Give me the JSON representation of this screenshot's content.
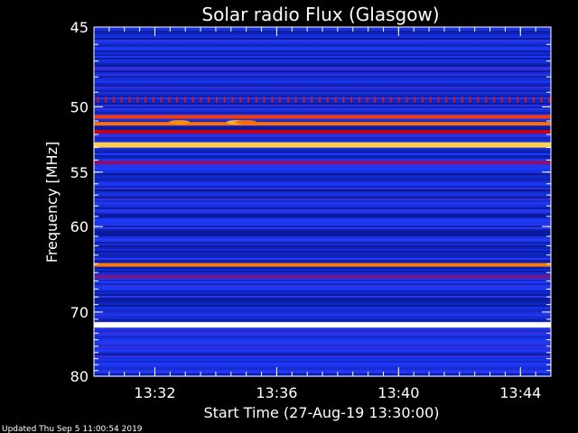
{
  "chart_data": {
    "type": "heatmap",
    "title": "Solar radio Flux (Glasgow)",
    "xlabel": "Start Time (27-Aug-19 13:30:00)",
    "ylabel": "Frequency [MHz]",
    "x_ticks": [
      "13:32",
      "13:36",
      "13:40",
      "13:44"
    ],
    "x_tick_minutes": [
      2,
      6,
      10,
      14
    ],
    "xlim_minutes": [
      0,
      15
    ],
    "y_ticks": [
      45,
      50,
      55,
      60,
      70,
      80
    ],
    "ylim": [
      45,
      80
    ],
    "y_scale": "reciprocal",
    "colormap": [
      "#000033",
      "#0a1aa0",
      "#1e3cff",
      "#6a1aa0",
      "#c80014",
      "#ff3c00",
      "#ff8c00",
      "#ffe066",
      "#ffffff"
    ],
    "bands": [
      {
        "freq": 49.5,
        "intensity": 0.55,
        "style": "dotted"
      },
      {
        "freq": 50.7,
        "intensity": 0.62
      },
      {
        "freq": 51.2,
        "intensity": 0.7
      },
      {
        "freq": 51.8,
        "intensity": 0.5
      },
      {
        "freq": 52.8,
        "intensity": 0.85
      },
      {
        "freq": 54.2,
        "intensity": 0.42
      },
      {
        "freq": 64.1,
        "intensity": 0.72
      },
      {
        "freq": 65.5,
        "intensity": 0.4
      },
      {
        "freq": 71.8,
        "intensity": 1.0
      }
    ],
    "spots": [
      {
        "minute": 2.8,
        "freq": 51.1,
        "intensity": 0.75
      },
      {
        "minute": 4.7,
        "freq": 51.1,
        "intensity": 0.8
      },
      {
        "minute": 5.0,
        "freq": 51.1,
        "intensity": 0.7
      }
    ]
  },
  "footer": {
    "updated": "Updated Thu Sep  5 11:00:54 2019"
  }
}
